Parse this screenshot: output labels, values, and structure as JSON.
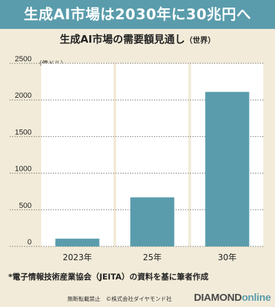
{
  "headline": "生成AI市場は2030年に30兆円へ",
  "title": "生成AI市場の需要額見通し",
  "title_sub": "（世界）",
  "unit": "（億ドル）",
  "note": "*電子情報技術産業協会（JEITA）の資料を基に筆者作成",
  "footer": {
    "copyright": "無断転載禁止　©株式会社ダイヤモンド社",
    "brand_main": "DIAMOND",
    "brand_sub": "online"
  },
  "colors": {
    "accent": "#5a9cac",
    "background": "#f2ebd9",
    "plot_column": "#ffffff"
  },
  "chart_data": {
    "type": "bar",
    "title": "生成AI市場の需要額見通し（世界）",
    "ylabel": "（億ドル）",
    "categories": [
      "2023年",
      "25年",
      "30年"
    ],
    "values": [
      106,
      670,
      2110
    ],
    "ylim": [
      0,
      2500
    ],
    "yticks": [
      0,
      500,
      1000,
      1500,
      2000,
      2500
    ],
    "grid": true
  }
}
